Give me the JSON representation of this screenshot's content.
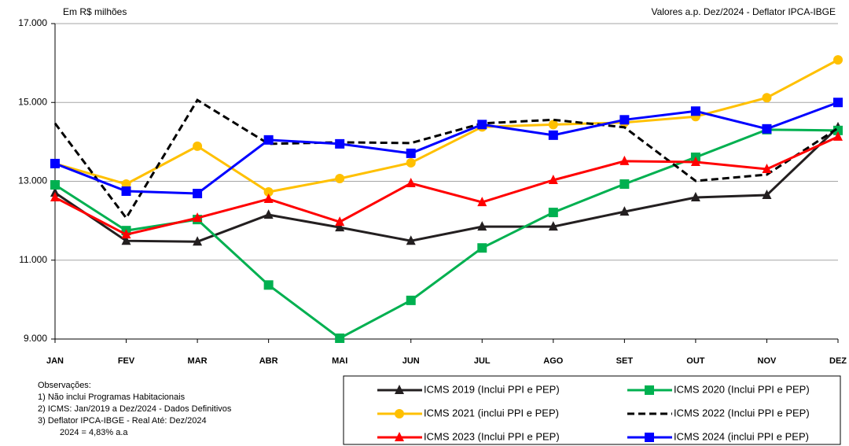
{
  "chart_data": {
    "type": "line",
    "subtitle_left": "Em R$ milhões",
    "subtitle_right": "Valores a.p. Dez/2024 - Deflator IPCA-IBGE",
    "categories": [
      "JAN",
      "FEV",
      "MAR",
      "ABR",
      "MAI",
      "JUN",
      "JUL",
      "AGO",
      "SET",
      "OUT",
      "NOV",
      "DEZ"
    ],
    "ylim": [
      9000,
      17000
    ],
    "yticks": [
      {
        "value": 9000,
        "label": "9.000"
      },
      {
        "value": 11000,
        "label": "11.000"
      },
      {
        "value": 13000,
        "label": "13.000"
      },
      {
        "value": 15000,
        "label": "15.000"
      },
      {
        "value": 17000,
        "label": "17.000"
      }
    ],
    "grid": true,
    "series": [
      {
        "name": "ICMS 2019 (Inclui PPI e PEP)",
        "color": "#231f20",
        "marker": "triangle",
        "dashed": false,
        "values": [
          12710,
          11490,
          11470,
          12150,
          11830,
          11490,
          11850,
          11850,
          12230,
          12590,
          12650,
          14370
        ]
      },
      {
        "name": "ICMS 2020 (Inclui PPI e PEP)",
        "color": "#00b050",
        "marker": "square",
        "dashed": false,
        "values": [
          12910,
          11750,
          12030,
          10370,
          9020,
          9980,
          11310,
          12210,
          12930,
          13610,
          14310,
          14290
        ]
      },
      {
        "name": "ICMS 2021 (inclui PPI e PEP)",
        "color": "#ffc000",
        "marker": "circle",
        "dashed": false,
        "values": [
          13450,
          12930,
          13890,
          12730,
          13070,
          13470,
          14380,
          14440,
          14490,
          14640,
          15120,
          16080
        ]
      },
      {
        "name": "ICMS 2022 (Inclui PPI e PEP)",
        "color": "#000000",
        "marker": "none",
        "dashed": true,
        "values": [
          14470,
          12070,
          15060,
          13950,
          13990,
          13970,
          14470,
          14560,
          14370,
          13010,
          13170,
          14350
        ]
      },
      {
        "name": "ICMS 2023 (Inclui PPI e PEP)",
        "color": "#ff0000",
        "marker": "triangle",
        "dashed": false,
        "values": [
          12590,
          11650,
          12070,
          12550,
          11970,
          12950,
          12470,
          13030,
          13510,
          13490,
          13310,
          14130
        ]
      },
      {
        "name": "ICMS 2024 (inclui PPI e PEP)",
        "color": "#0000ff",
        "marker": "square",
        "dashed": false,
        "values": [
          13450,
          12750,
          12690,
          14050,
          13950,
          13710,
          14440,
          14170,
          14560,
          14780,
          14330,
          15000
        ]
      }
    ],
    "notes": {
      "title": "Observações:",
      "lines": [
        "1)  Não inclui Programas Habitacionais",
        "2)  ICMS: Jan/2019 a Dez/2024 - Dados Definitivos",
        "3)  Deflator IPCA-IBGE - Real Até: Dez/2024",
        "2024 = 4,83% a.a"
      ]
    }
  }
}
